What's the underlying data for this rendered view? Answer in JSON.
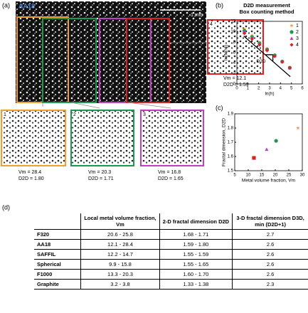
{
  "panels": {
    "a": "(a)",
    "b": "(b)",
    "c": "(c)",
    "d": "(d)"
  },
  "micrograph": {
    "title": "AA18",
    "scale": "1 mm",
    "insets": [
      {
        "label": "4",
        "vm": "Vm = 12.1",
        "d2d": "D2D = 1.59"
      },
      {
        "label": "1",
        "vm": "Vm = 28.4",
        "d2d": "D2D = 1.80"
      },
      {
        "label": "2",
        "vm": "Vm = 20.3",
        "d2d": "D2D = 1.71"
      },
      {
        "label": "3",
        "vm": "Vm = 16.8",
        "d2d": "D2D = 1.65"
      }
    ]
  },
  "chart_data": [
    {
      "type": "scatter",
      "title": "D2D measurement",
      "subtitle": "Box counting method",
      "x_label": "ln(h)",
      "y_label": "ln(N(h))",
      "annotation": "D2D",
      "x": [
        0.69,
        1.39,
        2.08,
        2.77,
        3.47,
        4.16,
        4.85
      ],
      "xlim": [
        0,
        6
      ],
      "xticks": [
        0,
        1,
        2,
        3,
        4,
        5,
        6
      ],
      "ylim": [
        0,
        12
      ],
      "yticks": [
        0,
        2,
        4,
        6,
        8,
        10,
        12
      ],
      "series": [
        {
          "name": "1",
          "color": "#f0a030",
          "marker": "star",
          "values": [
            10.5,
            9.3,
            8.0,
            6.8,
            5.5,
            4.3,
            3.0
          ]
        },
        {
          "name": "2",
          "color": "#1a9a50",
          "marker": "circle",
          "values": [
            10.2,
            9.0,
            7.8,
            6.6,
            5.5,
            4.3,
            3.1
          ]
        },
        {
          "name": "3",
          "color": "#c040c0",
          "marker": "triangle",
          "values": [
            10.0,
            8.9,
            7.7,
            6.6,
            5.4,
            4.3,
            3.1
          ]
        },
        {
          "name": "4",
          "color": "#e02020",
          "marker": "diamond",
          "values": [
            9.7,
            8.6,
            7.5,
            6.4,
            5.3,
            4.2,
            3.1
          ]
        }
      ]
    },
    {
      "type": "scatter",
      "x_label": "Metal volume fraction, Vm",
      "y_label": "Fractal dimension, D2D",
      "x": [
        12.1,
        16.8,
        20.3,
        28.4
      ],
      "values": [
        1.59,
        1.65,
        1.71,
        1.8
      ],
      "colors": [
        "#e02020",
        "#c040c0",
        "#1a9a50",
        "#f0a030"
      ],
      "markers": [
        "square",
        "triangle",
        "circle",
        "star"
      ],
      "xlim": [
        5,
        30
      ],
      "xticks": [
        5,
        10,
        15,
        20,
        25,
        30
      ],
      "ylim": [
        1.5,
        1.9
      ],
      "yticks": [
        1.5,
        1.6,
        1.7,
        1.8,
        1.9
      ]
    }
  ],
  "table": {
    "header": [
      "",
      "Local metal volume fraction, Vm",
      "2-D fractal dimension D2D",
      "3-D fractal dimension D3D, min (D2D+1)"
    ],
    "rows": [
      [
        "F320",
        "20.6 - 25.8",
        "1.68 - 1.71",
        "2.7"
      ],
      [
        "AA18",
        "12.1 - 28.4",
        "1.59 - 1.80",
        "2.6"
      ],
      [
        "SAFFIL",
        "12.2 - 14.7",
        "1.55 - 1.59",
        "2.6"
      ],
      [
        "Spherical",
        "9.9 - 15.8",
        "1.55 - 1.65",
        "2.6"
      ],
      [
        "F1000",
        "13.3 - 20.3",
        "1.60 - 1.70",
        "2.6"
      ],
      [
        "Graphite",
        "3.2 - 3.8",
        "1.33 - 1.38",
        "2.3"
      ]
    ]
  }
}
